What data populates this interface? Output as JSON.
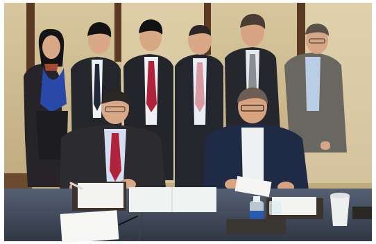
{
  "photo": {
    "colors": {
      "wall": "#c9b48a",
      "wall_light": "#e2d4ad",
      "wood_trim": "#5a3a22",
      "table_cloth": "#4b5566",
      "table_cloth_dark": "#343c4a",
      "suit_dark": "#26282e",
      "suit_navy": "#1f2a44",
      "suit_grey": "#6a6760",
      "skin": "#d9a987",
      "shirt_white": "#eef0f2",
      "shirt_blue": "#b9cde4",
      "tie_red": "#b0233a",
      "tie_pink": "#d99aa6",
      "scarf_blue": "#2a48a8",
      "paper": "#f4f5f2",
      "leather": "#3c342c"
    }
  }
}
